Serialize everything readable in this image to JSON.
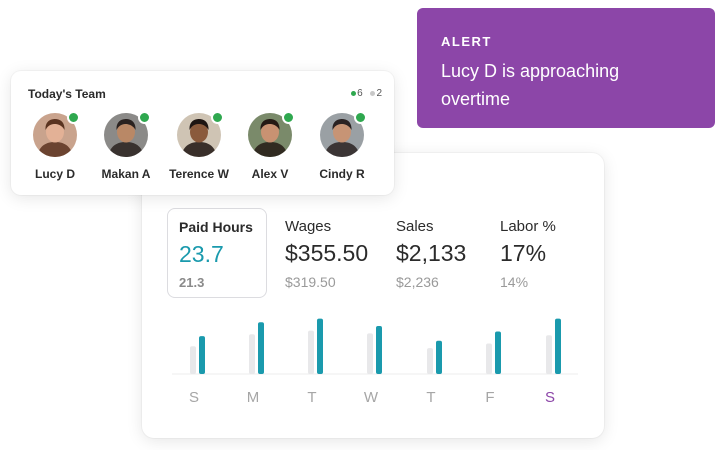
{
  "alert": {
    "label": "ALERT",
    "message": "Lucy D is approaching overtime",
    "color": "#8c46a8"
  },
  "team": {
    "title": "Today's Team",
    "online_count": "6",
    "offline_count": "2",
    "online_color": "#2fa84f",
    "members": [
      {
        "name": "Lucy D",
        "online": true,
        "avatar_bg": "#c9a38d",
        "skin": "#e3b196",
        "hair": "#5a3320"
      },
      {
        "name": "Makan A",
        "online": true,
        "avatar_bg": "#8b8a88",
        "skin": "#b98866",
        "hair": "#2a2220"
      },
      {
        "name": "Terence W",
        "online": true,
        "avatar_bg": "#cfc4b4",
        "skin": "#8a5a3c",
        "hair": "#1e1512"
      },
      {
        "name": "Alex V",
        "online": true,
        "avatar_bg": "#7a8a6a",
        "skin": "#c89272",
        "hair": "#241a14"
      },
      {
        "name": "Cindy R",
        "online": true,
        "avatar_bg": "#9aa0a4",
        "skin": "#c79475",
        "hair": "#2a2222"
      }
    ]
  },
  "metrics": [
    {
      "label": "Paid Hours",
      "value": "23.7",
      "previous": "21.3",
      "selected": true
    },
    {
      "label": "Wages",
      "value": "$355.50",
      "previous": "$319.50",
      "selected": false
    },
    {
      "label": "Sales",
      "value": "$2,133",
      "previous": "$2,236",
      "selected": false
    },
    {
      "label": "Labor %",
      "value": "17%",
      "previous": "14%",
      "selected": false
    }
  ],
  "chart_data": {
    "type": "bar",
    "categories": [
      "S",
      "M",
      "T",
      "W",
      "T",
      "F",
      "S"
    ],
    "highlight_category_index": 6,
    "series": [
      {
        "values": [
          3.0,
          4.3,
          4.7,
          4.4,
          2.8,
          3.3,
          4.2
        ],
        "color": "#e8e8ea"
      },
      {
        "values": [
          4.1,
          5.6,
          6.0,
          5.2,
          3.6,
          4.6,
          6.0
        ],
        "color": "#1a9aad"
      }
    ],
    "ylim": [
      0,
      6.5
    ],
    "highlight_color": "#8c46a8",
    "label_color": "#a6a6a6"
  }
}
